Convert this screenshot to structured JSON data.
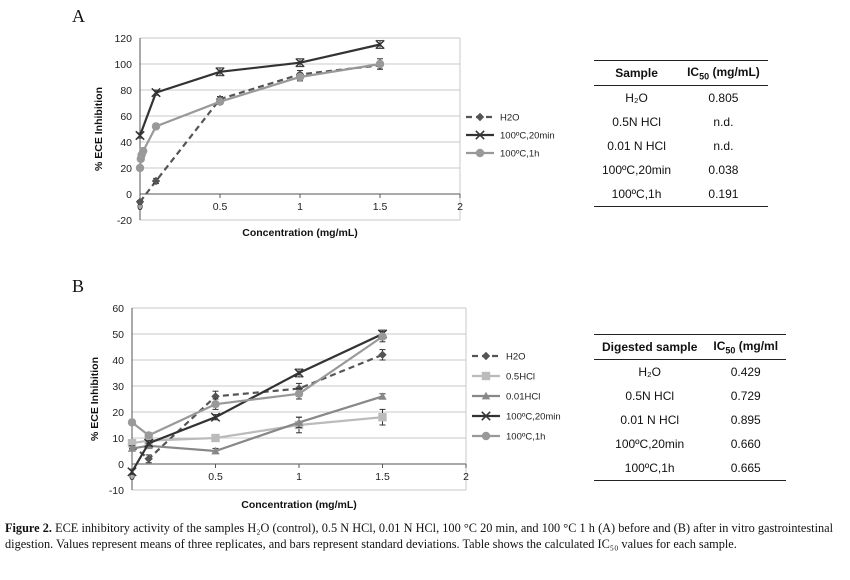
{
  "panels": {
    "a_letter": "A",
    "b_letter": "B"
  },
  "chart_data": [
    {
      "type": "line",
      "panel": "A",
      "title": "",
      "xlabel": "Concentration (mg/mL)",
      "ylabel": "% ECE Inhibition",
      "xlim": [
        0,
        2
      ],
      "ylim": [
        -20,
        120
      ],
      "xticks": [
        0,
        0.5,
        1,
        1.5,
        2
      ],
      "xtick_labels": [
        "0",
        "0.5",
        "1",
        "1.5",
        "2"
      ],
      "yticks": [
        -20,
        0,
        20,
        40,
        60,
        80,
        100,
        120
      ],
      "ytick_labels": [
        "-20",
        "0",
        "20",
        "40",
        "60",
        "80",
        "100",
        "120"
      ],
      "grid": "horizontal",
      "legend_position": "right",
      "series": [
        {
          "name": "H2O",
          "color": "#555555",
          "dashed": true,
          "marker": "diamond",
          "x": [
            0,
            0.1,
            0.5,
            1,
            1.5
          ],
          "y": [
            -6,
            10,
            73,
            92,
            99
          ],
          "err": [
            1,
            2,
            2,
            3,
            3
          ]
        },
        {
          "name": "100ºC,20min",
          "color": "#333333",
          "dashed": false,
          "marker": "x",
          "x": [
            0,
            0.1,
            0.5,
            1,
            1.5
          ],
          "y": [
            45,
            78,
            94,
            101,
            115
          ],
          "err": [
            2,
            2,
            3,
            3,
            3
          ]
        },
        {
          "name": "100ºC,1h",
          "color": "#999999",
          "dashed": false,
          "marker": "circle",
          "x": [
            0,
            0.005,
            0.01,
            0.02,
            0.1,
            0.5,
            1,
            1.5
          ],
          "y": [
            20,
            27,
            30,
            33,
            52,
            71,
            90,
            100
          ],
          "err": [
            1,
            1,
            1,
            1,
            2,
            2,
            3,
            4
          ]
        }
      ]
    },
    {
      "type": "line",
      "panel": "B",
      "title": "",
      "xlabel": "Concentration (mg/mL)",
      "ylabel": "% ECE Inhibition",
      "xlim": [
        0,
        2
      ],
      "ylim": [
        -10,
        60
      ],
      "xticks": [
        0,
        0.5,
        1,
        1.5,
        2
      ],
      "xtick_labels": [
        "0",
        "0.5",
        "1",
        "1.5",
        "2"
      ],
      "yticks": [
        -10,
        0,
        10,
        20,
        30,
        40,
        50,
        60
      ],
      "ytick_labels": [
        "-10",
        "0",
        "10",
        "20",
        "30",
        "40",
        "50",
        "60"
      ],
      "grid": "horizontal",
      "legend_position": "right",
      "series": [
        {
          "name": "H2O",
          "color": "#555555",
          "dashed": true,
          "marker": "diamond",
          "x": [
            0,
            0.1,
            0.5,
            1,
            1.5
          ],
          "y": [
            7,
            2,
            26,
            29,
            42
          ],
          "err": [
            1,
            1.5,
            2,
            2,
            2
          ]
        },
        {
          "name": "0.5HCl",
          "color": "#bbbbbb",
          "dashed": false,
          "marker": "square",
          "x": [
            0,
            0.1,
            0.5,
            1,
            1.5
          ],
          "y": [
            8,
            9,
            10,
            15,
            18
          ],
          "err": [
            1,
            1,
            1,
            3,
            3
          ]
        },
        {
          "name": "0.01HCl",
          "color": "#888888",
          "dashed": false,
          "marker": "triangle",
          "x": [
            0,
            0.1,
            0.5,
            1,
            1.5
          ],
          "y": [
            6,
            7,
            5,
            16,
            26
          ],
          "err": [
            1,
            1,
            1,
            2,
            1
          ]
        },
        {
          "name": "100ºC,20min",
          "color": "#333333",
          "dashed": false,
          "marker": "x",
          "x": [
            0,
            0.1,
            0.5,
            1,
            1.5
          ],
          "y": [
            -3,
            8,
            18,
            35,
            50
          ],
          "err": [
            1,
            1,
            1,
            1.5,
            1.5
          ]
        },
        {
          "name": "100ºC,1h",
          "color": "#999999",
          "dashed": false,
          "marker": "circle",
          "x": [
            0,
            0.1,
            0.5,
            1,
            1.5
          ],
          "y": [
            16,
            11,
            23,
            27,
            49
          ],
          "err": [
            1,
            1,
            2,
            2,
            2
          ]
        }
      ]
    }
  ],
  "table_a": {
    "col1": "Sample",
    "col2_main": "IC",
    "col2_sub": "50",
    "col2_rest": " (mg/mL)",
    "rows": [
      {
        "sample": "H₂O",
        "ic50": "0.805"
      },
      {
        "sample": "0.5N HCl",
        "ic50": "n.d."
      },
      {
        "sample": "0.01 N HCl",
        "ic50": "n.d."
      },
      {
        "sample": "100ºC,20min",
        "ic50": "0.038"
      },
      {
        "sample": "100ºC,1h",
        "ic50": "0.191"
      }
    ]
  },
  "table_b": {
    "col1": "Digested sample",
    "col2_main": "IC",
    "col2_sub": "50",
    "col2_rest": " (mg/ml",
    "rows": [
      {
        "sample": "H₂O",
        "ic50": "0.429"
      },
      {
        "sample": "0.5N HCl",
        "ic50": "0.729"
      },
      {
        "sample": "0.01 N HCl",
        "ic50": "0.895"
      },
      {
        "sample": "100ºC,20min",
        "ic50": "0.660"
      },
      {
        "sample": "100ºC,1h",
        "ic50": "0.665"
      }
    ]
  },
  "caption": {
    "label": "Figure 2.",
    "text": "ECE inhibitory activity of the samples H₂O (control), 0.5 N HCl, 0.01 N HCl, 100 °C 20 min, and 100 °C 1 h (A) before and (B) after in vitro gastrointestinal digestion. Values represent means of three replicates, and bars represent standard deviations. Table shows the calculated IC₅₀ values for each sample."
  }
}
